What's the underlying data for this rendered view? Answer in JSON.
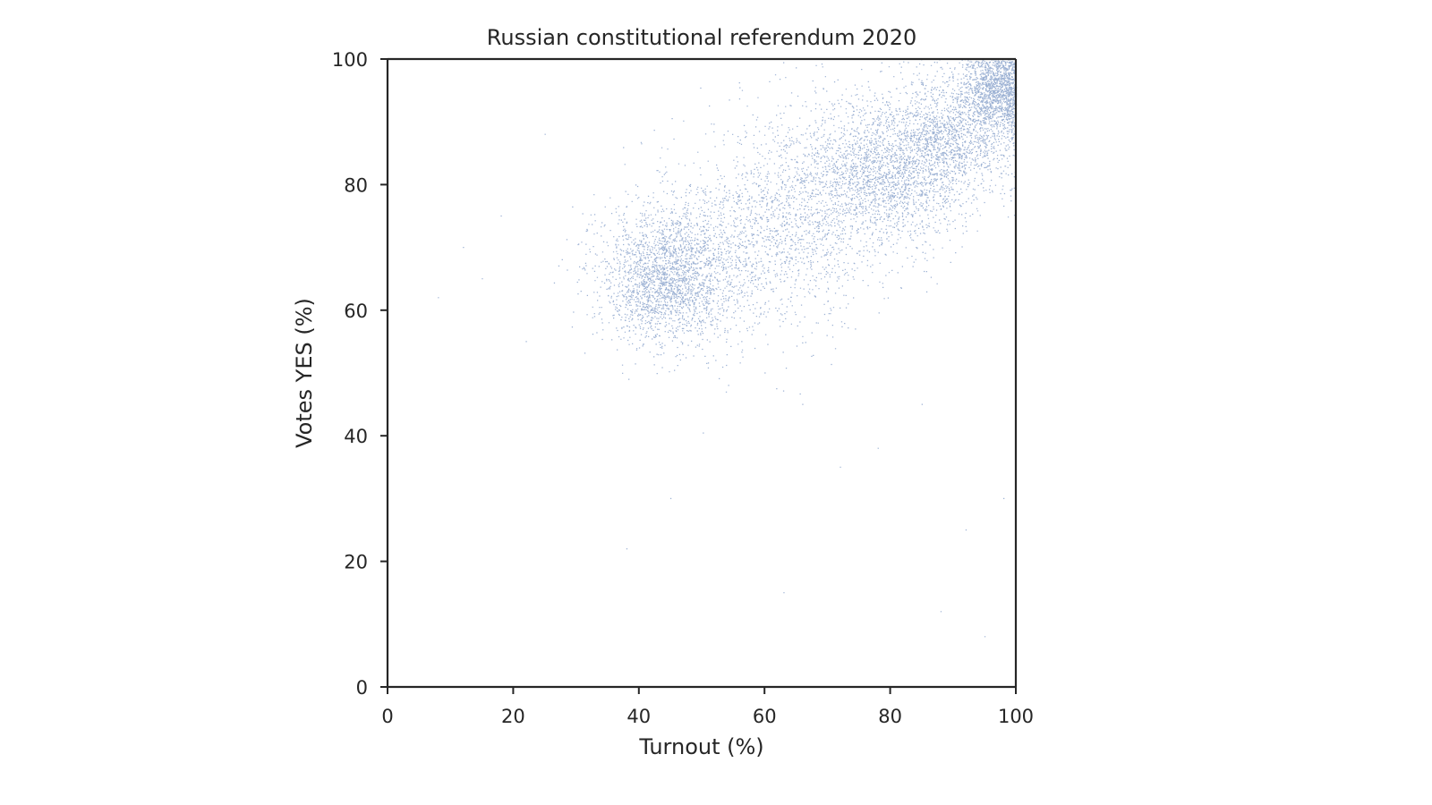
{
  "chart_data": {
    "type": "scatter",
    "title": "Russian constitutional referendum 2020",
    "xlabel": "Turnout (%)",
    "ylabel": "Votes YES (%)",
    "xlim": [
      0,
      100
    ],
    "ylim": [
      0,
      100
    ],
    "xticks": [
      "0",
      "20",
      "40",
      "60",
      "80",
      "100"
    ],
    "yticks": [
      "0",
      "20",
      "40",
      "60",
      "80",
      "100"
    ],
    "grid": false,
    "legend": "none",
    "marker_color": "#4c72b0",
    "marker_size": "tiny",
    "point_count_approx": 95000,
    "density_clusters": [
      {
        "turnout": 44,
        "votes_yes": 65,
        "turnout_sd": 5,
        "votes_yes_sd": 5,
        "weight": 0.22
      },
      {
        "turnout": 55,
        "votes_yes": 70,
        "turnout_sd": 9,
        "votes_yes_sd": 8,
        "weight": 0.14
      },
      {
        "turnout": 68,
        "votes_yes": 78,
        "turnout_sd": 7,
        "votes_yes_sd": 8,
        "weight": 0.12
      },
      {
        "turnout": 80,
        "votes_yes": 82,
        "turnout_sd": 6,
        "votes_yes_sd": 6,
        "weight": 0.2
      },
      {
        "turnout": 90,
        "votes_yes": 88,
        "turnout_sd": 5,
        "votes_yes_sd": 5,
        "weight": 0.17
      },
      {
        "turnout": 97,
        "votes_yes": 95,
        "turnout_sd": 2.5,
        "votes_yes_sd": 3,
        "weight": 0.15
      }
    ],
    "outliers": [
      [
        8,
        62
      ],
      [
        12,
        70
      ],
      [
        15,
        65
      ],
      [
        18,
        75
      ],
      [
        22,
        55
      ],
      [
        25,
        88
      ],
      [
        38,
        22
      ],
      [
        45,
        30
      ],
      [
        63,
        15
      ],
      [
        66,
        45
      ],
      [
        72,
        35
      ],
      [
        78,
        38
      ],
      [
        88,
        12
      ],
      [
        92,
        25
      ],
      [
        95,
        8
      ],
      [
        98,
        30
      ],
      [
        85,
        45
      ],
      [
        60,
        50
      ]
    ]
  }
}
